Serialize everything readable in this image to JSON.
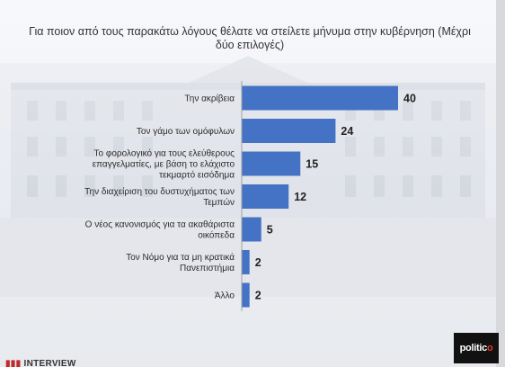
{
  "chart_data": {
    "type": "bar",
    "orientation": "horizontal",
    "title": "Για ποιον από τους παρακάτω λόγους θέλατε να στείλετε μήνυμα στην κυβέρνηση (Μέχρι δύο επιλογές)",
    "categories": [
      "Την ακρίβεια",
      "Τον γάμο των ομόφυλων",
      "Το φορολογικό για τους ελεύθερους επαγγελματίες, με βάση το ελάχιστο τεκμαρτό εισόδημα",
      "Την διαχείριση του δυστυχήματος των Τεμπών",
      "Ο νέος κανονισμός για τα ακαθάριστα οικόπεδα",
      "Τον Νόμο για τα μη κρατικά Πανεπιστήμια",
      "Άλλο"
    ],
    "category_lines": [
      [
        "Την ακρίβεια"
      ],
      [
        "Τον γάμο των ομόφυλων"
      ],
      [
        "Το φορολογικό για τους ελεύθερους",
        "επαγγελματίες, με βάση το ελάχιστο",
        "τεκμαρτό εισόδημα"
      ],
      [
        "Την διαχείριση του δυστυχήματος των",
        "Τεμπών"
      ],
      [
        "Ο νέος κανονισμός για τα ακαθάριστα",
        "οικόπεδα"
      ],
      [
        "Τον Νόμο για τα μη κρατικά",
        "Πανεπιστήμια"
      ],
      [
        "Άλλο"
      ]
    ],
    "values": [
      40,
      24,
      15,
      12,
      5,
      2,
      2
    ],
    "value_labels": [
      "40",
      "24",
      "15",
      "12",
      "5",
      "2",
      "2"
    ],
    "xlim": [
      0,
      42
    ],
    "grid": false,
    "legend": "none",
    "bar_color": "#4472c4"
  },
  "branding": {
    "logo_main": "politic",
    "logo_accent": "o",
    "footer_text": "INTERVIEW"
  }
}
